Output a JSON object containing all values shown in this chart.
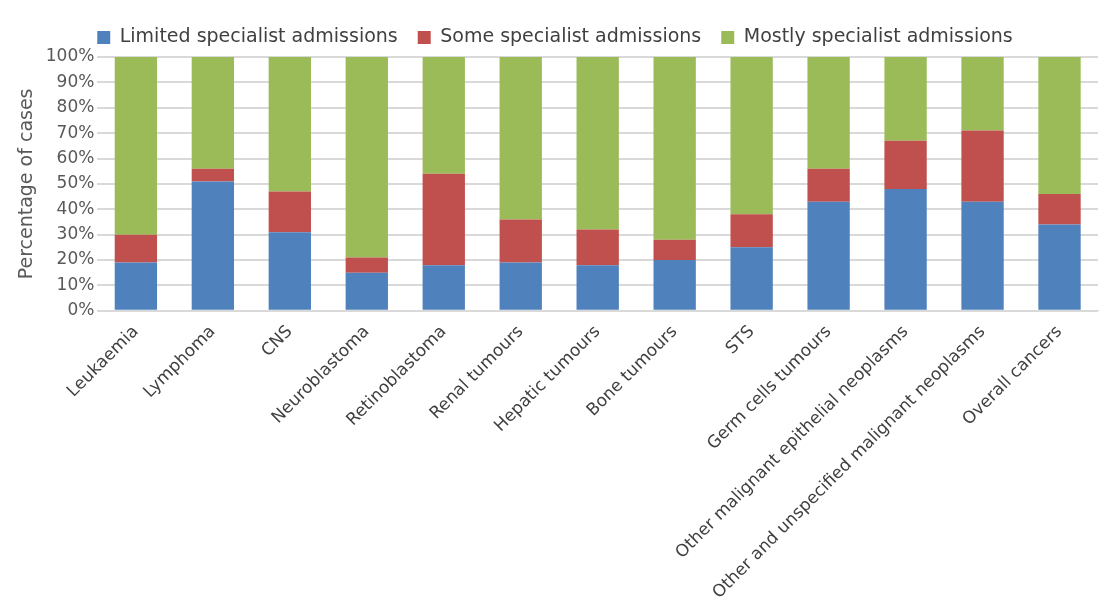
{
  "chart_data": {
    "type": "bar",
    "stacked": true,
    "ylabel": "Percentage of cases",
    "categories": [
      "Leukaemia",
      "Lymphoma",
      "CNS",
      "Neuroblastoma",
      "Retinoblastoma",
      "Renal tumours",
      "Hepatic tumours",
      "Bone tumours",
      "STS",
      "Germ cells tumours",
      "Other malignant epithelial neoplasms",
      "Other and unspecified malignant neoplasms",
      "Overall cancers"
    ],
    "series": [
      {
        "name": "Limited specialist admissions",
        "color": "#4f81bd",
        "values": [
          19,
          51,
          31,
          15,
          18,
          19,
          18,
          20,
          25,
          43,
          48,
          43,
          34
        ]
      },
      {
        "name": "Some specialist admissions",
        "color": "#c0504d",
        "values": [
          11,
          5,
          16,
          6,
          36,
          17,
          14,
          8,
          13,
          13,
          19,
          28,
          12
        ]
      },
      {
        "name": "Mostly specialist admissions",
        "color": "#9bbb59",
        "values": [
          70,
          44,
          53,
          79,
          46,
          64,
          68,
          72,
          62,
          44,
          33,
          29,
          54
        ]
      }
    ],
    "ylim": [
      0,
      100
    ],
    "yticks": [
      {
        "value": 0,
        "label": "0%"
      },
      {
        "value": 10,
        "label": "10%"
      },
      {
        "value": 20,
        "label": "20%"
      },
      {
        "value": 30,
        "label": "30%"
      },
      {
        "value": 40,
        "label": "40%"
      },
      {
        "value": 50,
        "label": "50%"
      },
      {
        "value": 60,
        "label": "60%"
      },
      {
        "value": 70,
        "label": "70%"
      },
      {
        "value": 80,
        "label": "80%"
      },
      {
        "value": 90,
        "label": "90%"
      },
      {
        "value": 100,
        "label": "100%"
      }
    ],
    "grid": "y",
    "legend": "top"
  }
}
